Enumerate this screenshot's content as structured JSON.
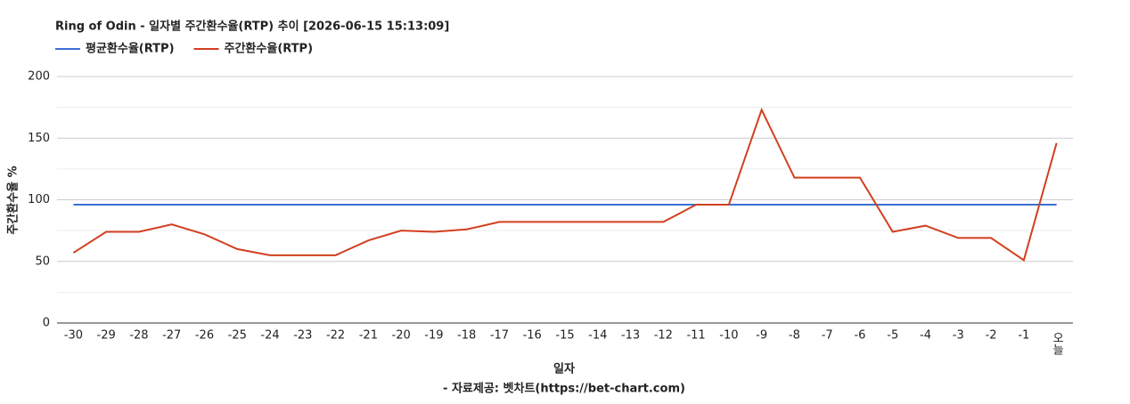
{
  "chart_data": {
    "type": "line",
    "title": "Ring of Odin - 일자별 주간환수율(RTP) 추이 [2026-06-15 15:13:09]",
    "x_label": "일자",
    "y_label": "주간환수율 %",
    "source": "- 자료제공: 벳차트(https://bet-chart.com)",
    "categories": [
      "-30",
      "-29",
      "-28",
      "-27",
      "-26",
      "-25",
      "-24",
      "-23",
      "-22",
      "-21",
      "-20",
      "-19",
      "-18",
      "-17",
      "-16",
      "-15",
      "-14",
      "-13",
      "-12",
      "-11",
      "-10",
      "-9",
      "-8",
      "-7",
      "-6",
      "-5",
      "-4",
      "-3",
      "-2",
      "-1",
      "오늘"
    ],
    "series": [
      {
        "name": "평균환수율(RTP)",
        "color": "#3b6fd4",
        "values": [
          96,
          96,
          96,
          96,
          96,
          96,
          96,
          96,
          96,
          96,
          96,
          96,
          96,
          96,
          96,
          96,
          96,
          96,
          96,
          96,
          96,
          96,
          96,
          96,
          96,
          96,
          96,
          96,
          96,
          96,
          96
        ]
      },
      {
        "name": "주간환수율(RTP)",
        "color": "#d23f1f",
        "values": [
          57,
          74,
          74,
          80,
          72,
          60,
          55,
          55,
          55,
          67,
          75,
          74,
          76,
          82,
          82,
          82,
          82,
          82,
          82,
          96,
          96,
          173,
          118,
          118,
          118,
          74,
          79,
          69,
          69,
          51,
          146
        ]
      }
    ],
    "ylim": [
      0,
      200
    ],
    "yticks": [
      0,
      50,
      100,
      150,
      200
    ],
    "minor_yticks": [
      25,
      75,
      125,
      175
    ],
    "grid": true,
    "legend": "top-left"
  }
}
